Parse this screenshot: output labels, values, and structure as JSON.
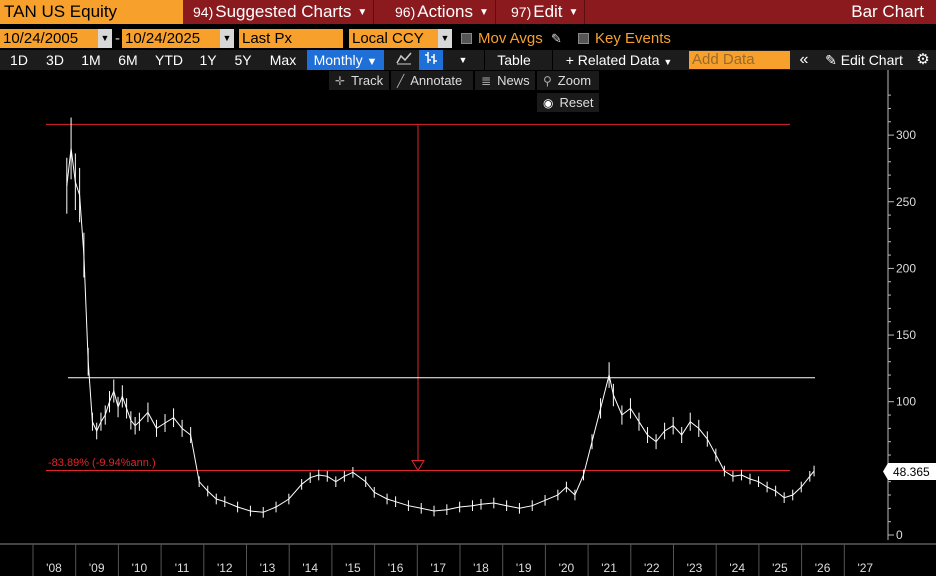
{
  "topbar": {
    "ticker": "TAN US Equity",
    "menus": [
      {
        "num": "94)",
        "label": "Suggested Charts"
      },
      {
        "num": "96)",
        "label": "Actions"
      },
      {
        "num": "97)",
        "label": "Edit"
      }
    ],
    "title": "Bar Chart"
  },
  "settings": {
    "start_date": "10/24/2005",
    "end_date": "10/24/2025",
    "dash": "-",
    "field": "Last Px",
    "currency": "Local CCY",
    "mov_avgs": "Mov Avgs",
    "key_events": "Key Events"
  },
  "periods": [
    "1D",
    "3D",
    "1M",
    "6M",
    "YTD",
    "1Y",
    "5Y",
    "Max"
  ],
  "frequency": "Monthly",
  "toolbar": {
    "table": "Table",
    "related_data": "Related Data",
    "add_data_placeholder": "Add Data",
    "edit_chart": "Edit Chart"
  },
  "tools": {
    "track": "Track",
    "annotate": "Annotate",
    "news": "News",
    "zoom": "Zoom",
    "reset": "Reset"
  },
  "colors": {
    "accent_orange": "#f7a12c",
    "header_red": "#8b1a1f",
    "selected_blue": "#1f6fd8",
    "annotation_red": "#e0262b"
  },
  "chart_data": {
    "type": "line",
    "y_ticks": [
      "300",
      "250",
      "200",
      "150",
      "100",
      "50",
      "0"
    ],
    "x_ticks": [
      "'08",
      "'09",
      "'10",
      "'11",
      "'12",
      "'13",
      "'14",
      "'15",
      "'16",
      "'17",
      "'18",
      "'19",
      "'20",
      "'21",
      "'22",
      "'23",
      "'24",
      "'25",
      "'26",
      "'27"
    ],
    "ylim": [
      0,
      340
    ],
    "last_price_label": "48.365",
    "change_annotation": "-83.89% (-9.94%ann.)",
    "levels": {
      "high": 308,
      "mid": 118,
      "last": 48.4
    },
    "series": {
      "x": [
        2008.3,
        2008.4,
        2008.5,
        2008.6,
        2008.7,
        2008.8,
        2008.9,
        2009.0,
        2009.1,
        2009.2,
        2009.3,
        2009.4,
        2009.5,
        2009.6,
        2009.7,
        2009.8,
        2009.9,
        2010.0,
        2010.2,
        2010.4,
        2010.6,
        2010.8,
        2011.0,
        2011.2,
        2011.4,
        2011.6,
        2011.8,
        2012.0,
        2012.3,
        2012.6,
        2012.9,
        2013.2,
        2013.5,
        2013.8,
        2014.0,
        2014.2,
        2014.4,
        2014.6,
        2014.8,
        2015.0,
        2015.3,
        2015.5,
        2015.8,
        2016.0,
        2016.3,
        2016.6,
        2016.9,
        2017.2,
        2017.5,
        2017.8,
        2018.0,
        2018.3,
        2018.6,
        2018.9,
        2019.2,
        2019.5,
        2019.8,
        2020.0,
        2020.2,
        2020.4,
        2020.6,
        2020.8,
        2021.0,
        2021.1,
        2021.3,
        2021.5,
        2021.7,
        2021.9,
        2022.1,
        2022.3,
        2022.5,
        2022.7,
        2022.9,
        2023.1,
        2023.3,
        2023.5,
        2023.7,
        2023.9,
        2024.1,
        2024.3,
        2024.5,
        2024.7,
        2024.9,
        2025.1,
        2025.3,
        2025.5,
        2025.7,
        2025.8
      ],
      "y": [
        262,
        290,
        265,
        255,
        210,
        130,
        85,
        78,
        85,
        90,
        100,
        108,
        96,
        104,
        95,
        86,
        82,
        85,
        92,
        80,
        84,
        88,
        80,
        75,
        40,
        33,
        27,
        25,
        21,
        18,
        17,
        21,
        27,
        38,
        43,
        45,
        44,
        40,
        44,
        47,
        40,
        32,
        27,
        25,
        22,
        20,
        18,
        19,
        21,
        22,
        23,
        24,
        22,
        20,
        22,
        26,
        30,
        36,
        30,
        45,
        70,
        95,
        120,
        105,
        90,
        95,
        85,
        75,
        70,
        78,
        82,
        75,
        85,
        80,
        72,
        60,
        48,
        44,
        45,
        42,
        40,
        36,
        33,
        28,
        30,
        36,
        44,
        48
      ]
    }
  }
}
